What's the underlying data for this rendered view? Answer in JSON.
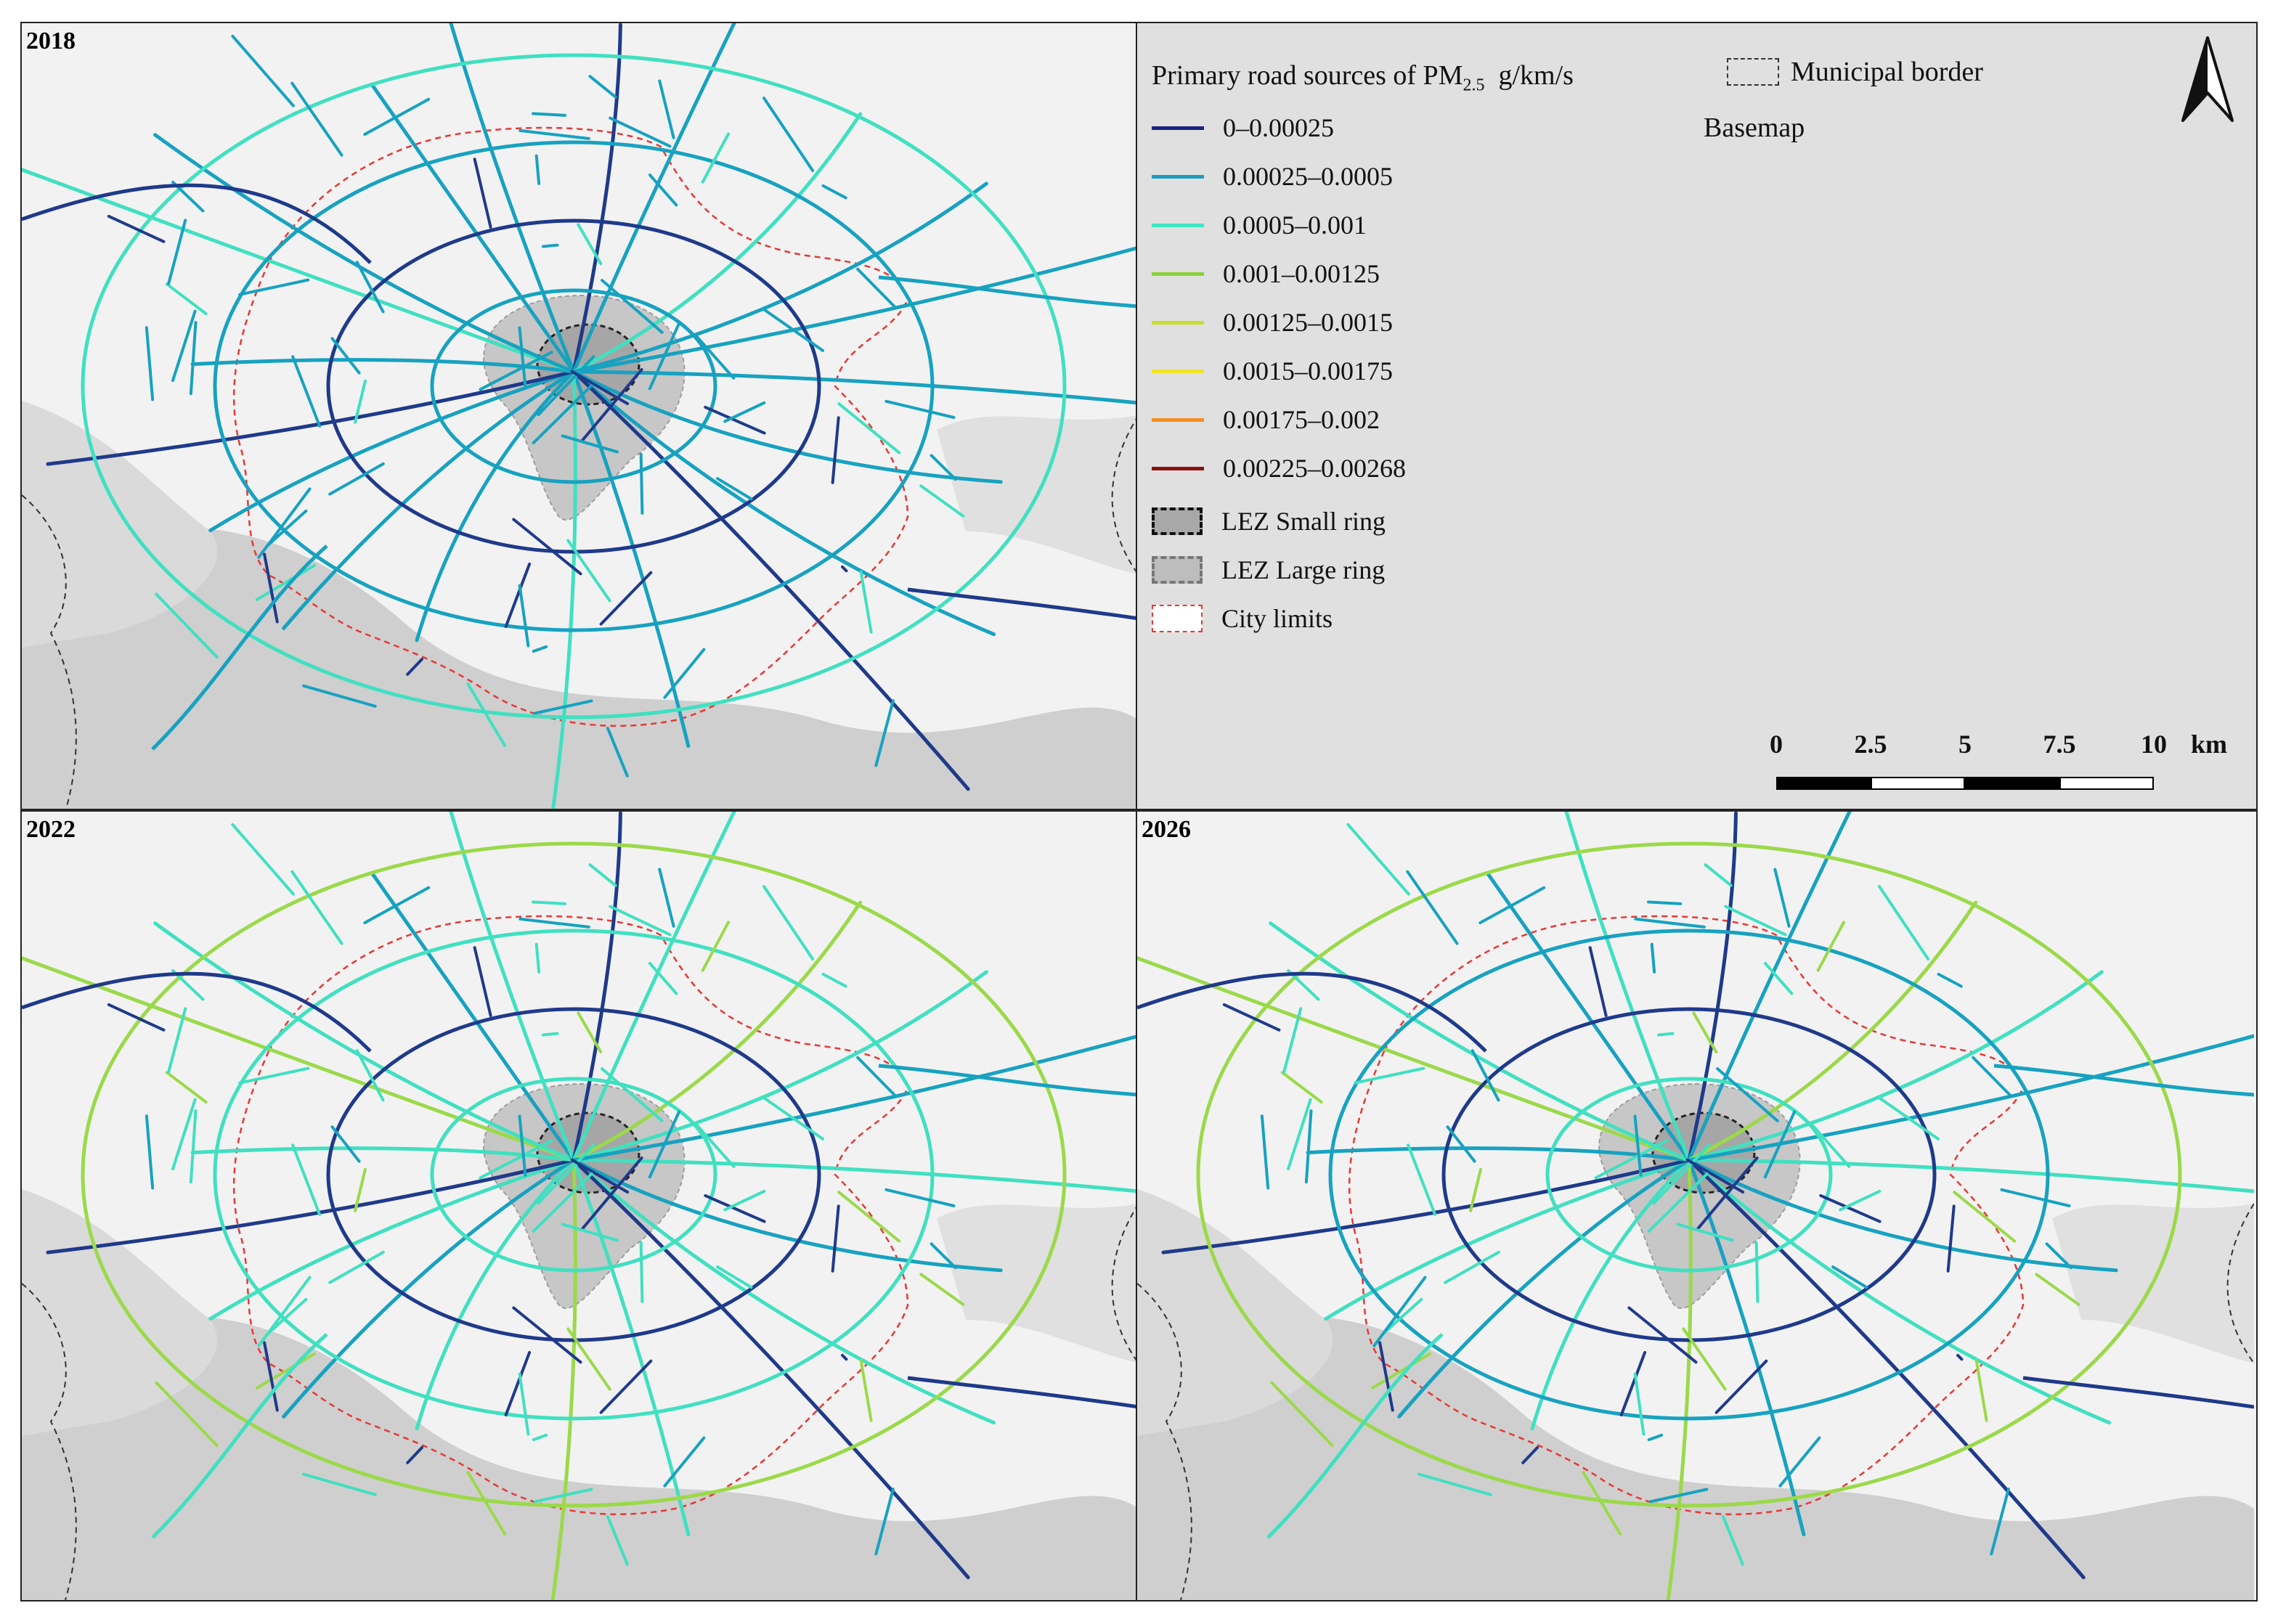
{
  "panels": [
    {
      "year": "2018",
      "palette": [
        "#17a2c0",
        "#17a2c0",
        "#17a2c0",
        "#1f3a8a",
        "#17a2c0",
        "#40e0c0"
      ]
    },
    {
      "year": "2022",
      "palette": [
        "#40e0c0",
        "#17a2c0",
        "#40e0c0",
        "#1f3a8a",
        "#40e0c0",
        "#9bd94a"
      ]
    },
    {
      "year": "2026",
      "palette": [
        "#40e0c0",
        "#17a2c0",
        "#40e0c0",
        "#1f3a8a",
        "#17a2c0",
        "#9bd94a"
      ]
    }
  ],
  "legend": {
    "title_prefix": "Primary road sources of PM",
    "title_sub": "2.5",
    "title_unit": "g/km/s",
    "classes": [
      {
        "label": "0–0.00025",
        "color": "#1a237e"
      },
      {
        "label": "0.00025–0.0005",
        "color": "#1e9cc0"
      },
      {
        "label": "0.0005–0.001",
        "color": "#3ee6c4"
      },
      {
        "label": "0.001–0.00125",
        "color": "#8cd33a"
      },
      {
        "label": "0.00125–0.0015",
        "color": "#c8df2a"
      },
      {
        "label": "0.0015–0.00175",
        "color": "#f2e528"
      },
      {
        "label": "0.00175–0.002",
        "color": "#f39021"
      },
      {
        "label": "0.00225–0.00268",
        "color": "#8b1010"
      }
    ],
    "lez_small": "LEZ Small ring",
    "lez_large": "LEZ Large ring",
    "city_limits": "City limits",
    "municipal_border": "Municipal border",
    "basemap": "Basemap"
  },
  "scale_bar": {
    "ticks": [
      "0",
      "2.5",
      "5",
      "7.5",
      "10"
    ],
    "unit": "km"
  }
}
